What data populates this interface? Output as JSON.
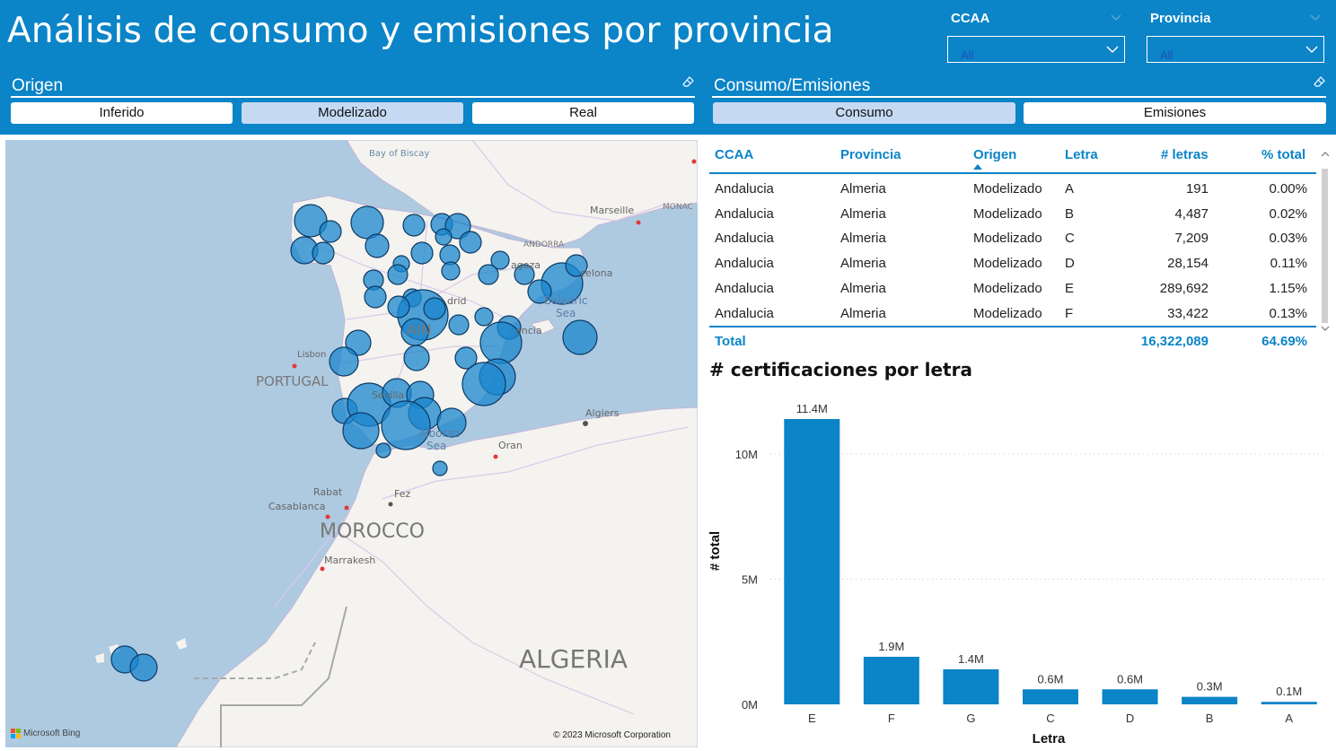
{
  "header": {
    "title": "Análisis de consumo y emisiones por provincia",
    "bg_color": "#0b84c8"
  },
  "filters": {
    "ccaa": {
      "label": "CCAA",
      "value": "All"
    },
    "provincia": {
      "label": "Provincia",
      "value": "All"
    }
  },
  "origen": {
    "label": "Origen",
    "buttons": [
      "Inferido",
      "Modelizado",
      "Real"
    ],
    "selected": "Modelizado"
  },
  "consumo_emisiones": {
    "label": "Consumo/Emisiones",
    "buttons": [
      "Consumo",
      "Emisiones"
    ],
    "selected": "Consumo"
  },
  "map": {
    "labels": {
      "bay": "Bay of Biscay",
      "marseille": "Marseille",
      "monaco": "MONAC",
      "andorra": "ANDORRA",
      "zaragoza": "agoza",
      "barcelona": "celona",
      "madrid": "drid",
      "balearic": "Balearic",
      "sea": "Sea",
      "valencia": "encia",
      "spain": "AIN",
      "lisbon": "Lisbon",
      "portugal": "PORTUGAL",
      "sevilla": "Sevilla",
      "alboran": "Alboran",
      "alboran_sea": "Sea",
      "algiers": "Algiers",
      "oran": "Oran",
      "rabat": "Rabat",
      "casablanca": "Casablanca",
      "fez": "Fez",
      "morocco": "MOROCCO",
      "marrakesh": "Marrakesh",
      "algeria": "ALGERIA"
    },
    "bing": "Microsoft Bing",
    "copyright": "© 2023 Microsoft Corporation",
    "bubble_color": "#1a86cc"
  },
  "table": {
    "columns": [
      "CCAA",
      "Provincia",
      "Origen",
      "Letra",
      "# letras",
      "% total"
    ],
    "rows": [
      [
        "Andalucia",
        "Almeria",
        "Modelizado",
        "A",
        "191",
        "0.00%"
      ],
      [
        "Andalucia",
        "Almeria",
        "Modelizado",
        "B",
        "4,487",
        "0.02%"
      ],
      [
        "Andalucia",
        "Almeria",
        "Modelizado",
        "C",
        "7,209",
        "0.03%"
      ],
      [
        "Andalucia",
        "Almeria",
        "Modelizado",
        "D",
        "28,154",
        "0.11%"
      ],
      [
        "Andalucia",
        "Almeria",
        "Modelizado",
        "E",
        "289,692",
        "1.15%"
      ],
      [
        "Andalucia",
        "Almeria",
        "Modelizado",
        "F",
        "33,422",
        "0.13%"
      ]
    ],
    "total": {
      "label": "Total",
      "letras": "16,322,089",
      "pct": "64.69%"
    },
    "header_color": "#0b84c8"
  },
  "chart_data": {
    "type": "bar",
    "title": "# certificaciones por letra",
    "xlabel": "Letra",
    "ylabel": "# total",
    "categories": [
      "E",
      "F",
      "G",
      "C",
      "D",
      "B",
      "A"
    ],
    "values": [
      11.4,
      1.9,
      1.4,
      0.6,
      0.6,
      0.3,
      0.1
    ],
    "data_labels": [
      "11.4M",
      "1.9M",
      "1.4M",
      "0.6M",
      "0.6M",
      "0.3M",
      "0.1M"
    ],
    "y_ticks": [
      0,
      5,
      10
    ],
    "y_tick_labels": [
      "0M",
      "5M",
      "10M"
    ],
    "ylim": [
      0,
      11.4
    ],
    "bar_color": "#0b84c8",
    "grid": true
  }
}
